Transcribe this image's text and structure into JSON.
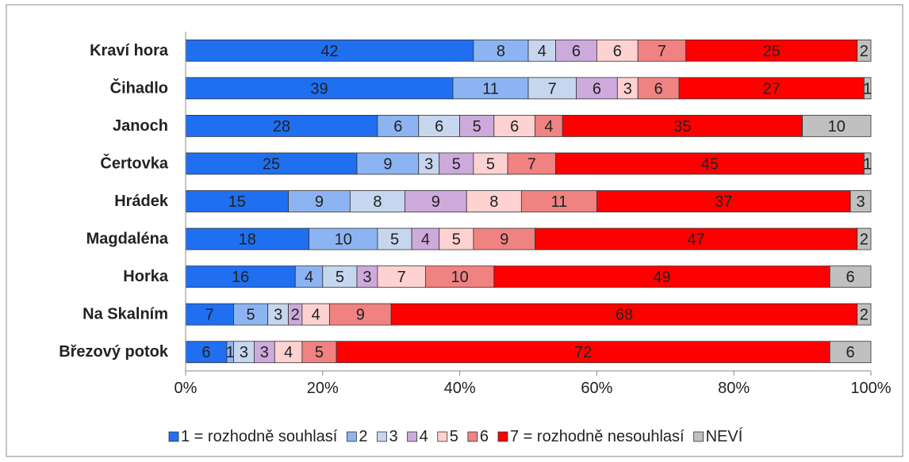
{
  "chart_data": {
    "type": "stacked-bar-horizontal",
    "categories": [
      "Kraví hora",
      "Čihadlo",
      "Janoch",
      "Čertovka",
      "Hrádek",
      "Magdaléna",
      "Horka",
      "Na Skalním",
      "Březový potok"
    ],
    "series": [
      {
        "name": "1 = rozhodně souhlasí",
        "color": "#1f6ff0",
        "values": [
          42,
          39,
          28,
          25,
          15,
          18,
          16,
          7,
          6
        ]
      },
      {
        "name": "2",
        "color": "#8db4f2",
        "values": [
          8,
          11,
          6,
          9,
          9,
          10,
          4,
          5,
          1
        ]
      },
      {
        "name": "3",
        "color": "#c6d6ee",
        "values": [
          4,
          7,
          6,
          3,
          8,
          5,
          5,
          3,
          3
        ]
      },
      {
        "name": "4",
        "color": "#cdaadb",
        "values": [
          6,
          6,
          5,
          5,
          9,
          4,
          3,
          2,
          3
        ]
      },
      {
        "name": "5",
        "color": "#ffd2d2",
        "values": [
          6,
          3,
          6,
          5,
          8,
          5,
          7,
          4,
          4
        ]
      },
      {
        "name": "6",
        "color": "#f08282",
        "values": [
          7,
          6,
          4,
          7,
          11,
          9,
          10,
          9,
          5
        ]
      },
      {
        "name": "7 = rozhodně nesouhlasí",
        "color": "#ff0000",
        "values": [
          25,
          27,
          35,
          45,
          37,
          47,
          49,
          68,
          72
        ]
      },
      {
        "name": "NEVÍ",
        "color": "#c0c0c0",
        "values": [
          2,
          1,
          10,
          1,
          3,
          2,
          6,
          2,
          6
        ]
      }
    ],
    "xlim": [
      0,
      100
    ],
    "xticks": [
      {
        "value": 0,
        "label": "0%"
      },
      {
        "value": 20,
        "label": "20%"
      },
      {
        "value": 40,
        "label": "40%"
      },
      {
        "value": 60,
        "label": "60%"
      },
      {
        "value": 80,
        "label": "80%"
      },
      {
        "value": 100,
        "label": "100%"
      }
    ],
    "legend": "bottom"
  }
}
